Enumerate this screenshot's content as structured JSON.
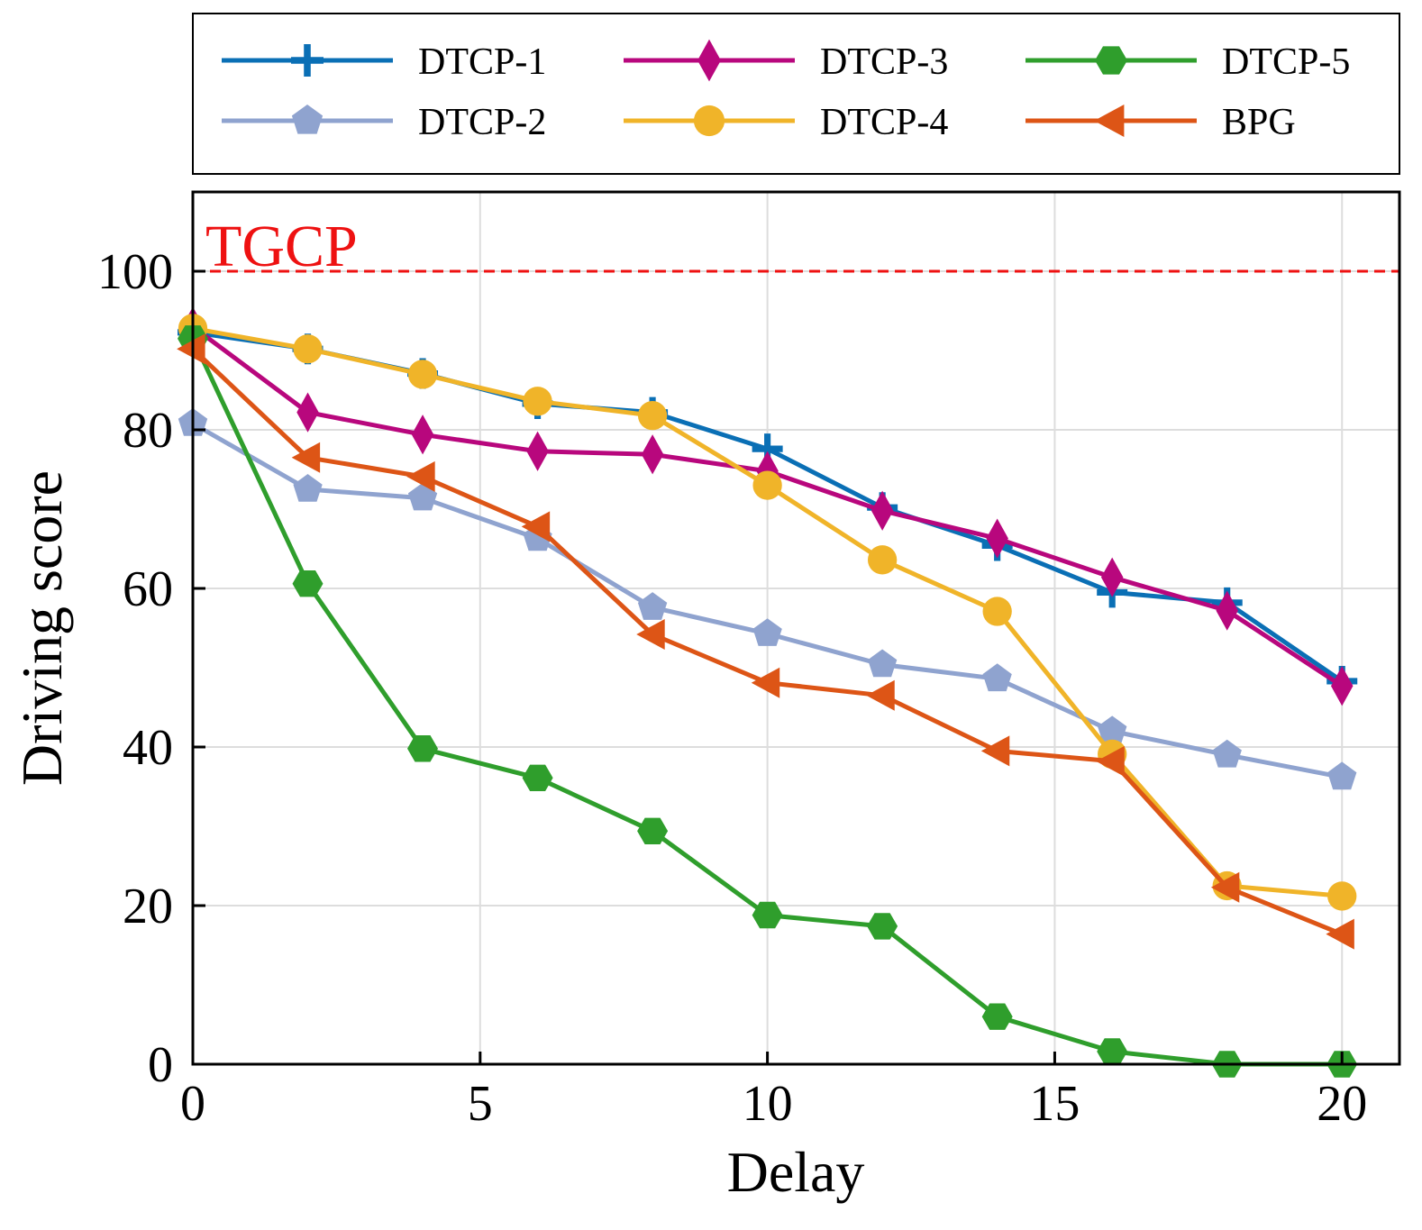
{
  "chart_data": {
    "type": "line",
    "title": "",
    "xlabel": "Delay",
    "ylabel": "Driving score",
    "xlim": [
      0,
      21
    ],
    "ylim": [
      0,
      110
    ],
    "xticks": [
      0,
      5,
      10,
      15,
      20
    ],
    "yticks": [
      0,
      20,
      40,
      60,
      80,
      100
    ],
    "grid": true,
    "legend_position": "top, outside plot",
    "x": [
      0,
      2,
      4,
      6,
      8,
      10,
      12,
      14,
      16,
      18,
      20
    ],
    "reference_line": {
      "label": "TGCP",
      "y": 100,
      "color": "#ee1111"
    },
    "series": [
      {
        "name": "DTCP-1",
        "color": "#0a6fb5",
        "marker": "plus",
        "values": [
          92.3,
          90.2,
          87.1,
          83.3,
          82.2,
          77.6,
          70.2,
          65.4,
          59.5,
          58.2,
          48.3
        ]
      },
      {
        "name": "DTCP-2",
        "color": "#8fa3cf",
        "marker": "pentagon",
        "values": [
          80.8,
          72.5,
          71.4,
          66.3,
          57.6,
          54.3,
          50.4,
          48.6,
          42.0,
          39.0,
          36.2
        ]
      },
      {
        "name": "DTCP-3",
        "color": "#b8077d",
        "marker": "diamond",
        "values": [
          93.0,
          82.2,
          79.4,
          77.3,
          76.9,
          74.8,
          69.8,
          66.3,
          61.4,
          57.2,
          47.7
        ]
      },
      {
        "name": "DTCP-4",
        "color": "#f0b429",
        "marker": "circle",
        "values": [
          92.8,
          90.2,
          87.0,
          83.6,
          81.8,
          73.0,
          63.6,
          57.1,
          39.1,
          22.5,
          21.2
        ]
      },
      {
        "name": "DTCP-5",
        "color": "#2f9e2c",
        "marker": "hexagon",
        "values": [
          91.5,
          60.6,
          39.8,
          36.1,
          29.4,
          18.8,
          17.4,
          6.0,
          1.6,
          0.0,
          0.0
        ]
      },
      {
        "name": "BPG",
        "color": "#dd5516",
        "marker": "triangle-left",
        "values": [
          90.2,
          76.5,
          74.1,
          67.8,
          54.2,
          48.1,
          46.5,
          39.5,
          38.2,
          22.3,
          16.4
        ]
      }
    ]
  }
}
